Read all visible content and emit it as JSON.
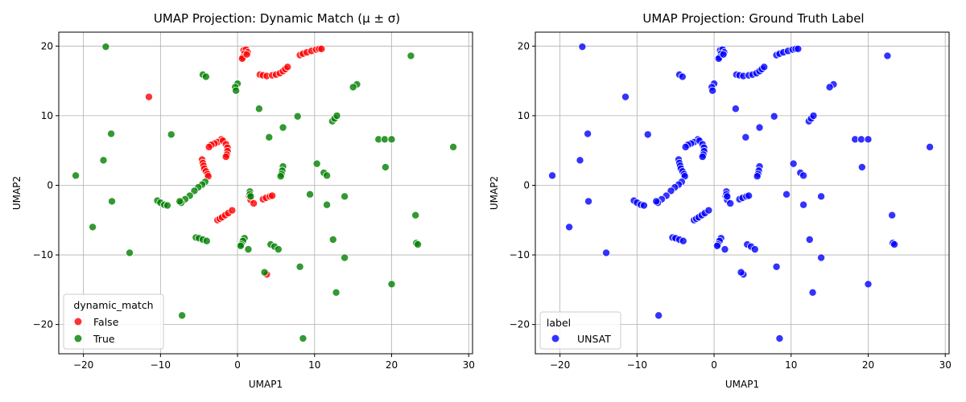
{
  "chart_data": [
    {
      "type": "scatter",
      "title": "UMAP Projection: Dynamic Match (μ ± σ)",
      "xlabel": "UMAP1",
      "ylabel": "UMAP2",
      "xlim": [
        -23.2,
        30.5
      ],
      "ylim": [
        -24.2,
        22.0
      ],
      "xticks": [
        "−20",
        "−10",
        "0",
        "10",
        "20",
        "30"
      ],
      "xtick_values": [
        -20,
        -10,
        0,
        10,
        20,
        30
      ],
      "yticks": [
        "−20",
        "−10",
        "0",
        "10",
        "20"
      ],
      "ytick_values": [
        -20,
        -10,
        0,
        10,
        20
      ],
      "grid": true,
      "legend": {
        "title": "dynamic_match",
        "placement": "lower-left"
      },
      "series": [
        {
          "name": "False",
          "color": "#ff0000",
          "points": [
            [
              -11.5,
              12.7
            ],
            [
              0.8,
              19.4
            ],
            [
              1.1,
              19.5
            ],
            [
              1.3,
              19.1
            ],
            [
              0.9,
              18.9
            ],
            [
              0.7,
              18.4
            ],
            [
              0.6,
              18.2
            ],
            [
              1.2,
              18.8
            ],
            [
              2.9,
              15.9
            ],
            [
              3.3,
              15.8
            ],
            [
              3.8,
              15.7
            ],
            [
              4.5,
              15.8
            ],
            [
              5.0,
              15.9
            ],
            [
              5.5,
              16.1
            ],
            [
              5.9,
              16.4
            ],
            [
              6.2,
              16.7
            ],
            [
              6.5,
              17.0
            ],
            [
              8.1,
              18.7
            ],
            [
              8.5,
              18.9
            ],
            [
              9.0,
              19.1
            ],
            [
              9.6,
              19.3
            ],
            [
              10.2,
              19.5
            ],
            [
              10.6,
              19.6
            ],
            [
              10.9,
              19.6
            ],
            [
              -2.1,
              6.6
            ],
            [
              -2.6,
              6.2
            ],
            [
              -3.0,
              6.0
            ],
            [
              -3.4,
              5.8
            ],
            [
              -3.7,
              5.5
            ],
            [
              -1.9,
              6.4
            ],
            [
              -1.5,
              5.9
            ],
            [
              -1.3,
              5.4
            ],
            [
              -1.3,
              4.9
            ],
            [
              -1.4,
              4.4
            ],
            [
              -1.5,
              4.1
            ],
            [
              -4.6,
              3.7
            ],
            [
              -4.5,
              3.2
            ],
            [
              -4.4,
              2.8
            ],
            [
              -4.3,
              2.4
            ],
            [
              -4.1,
              2.0
            ],
            [
              -3.9,
              1.6
            ],
            [
              -3.8,
              1.3
            ],
            [
              -2.6,
              -5.0
            ],
            [
              -2.3,
              -4.8
            ],
            [
              -2.0,
              -4.6
            ],
            [
              -1.6,
              -4.3
            ],
            [
              -1.2,
              -4.0
            ],
            [
              -0.7,
              -3.6
            ],
            [
              1.5,
              -1.5
            ],
            [
              1.7,
              -2.1
            ],
            [
              2.1,
              -2.6
            ],
            [
              3.3,
              -2.0
            ],
            [
              3.7,
              -1.8
            ],
            [
              4.2,
              -1.6
            ],
            [
              4.5,
              -1.5
            ],
            [
              3.8,
              -12.8
            ]
          ]
        },
        {
          "name": "True",
          "color": "#008000",
          "points": [
            [
              -17.1,
              19.9
            ],
            [
              22.5,
              18.6
            ],
            [
              -4.5,
              15.9
            ],
            [
              -4.1,
              15.6
            ],
            [
              0.0,
              14.6
            ],
            [
              -0.3,
              14.1
            ],
            [
              -0.2,
              13.6
            ],
            [
              15.5,
              14.5
            ],
            [
              15.0,
              14.1
            ],
            [
              2.8,
              11.0
            ],
            [
              -16.4,
              7.4
            ],
            [
              -8.6,
              7.3
            ],
            [
              5.9,
              8.3
            ],
            [
              12.3,
              9.2
            ],
            [
              12.6,
              9.6
            ],
            [
              12.9,
              10.0
            ],
            [
              7.8,
              9.9
            ],
            [
              4.1,
              6.9
            ],
            [
              18.3,
              6.6
            ],
            [
              19.1,
              6.6
            ],
            [
              20.0,
              6.6
            ],
            [
              28.0,
              5.5
            ],
            [
              -17.4,
              3.6
            ],
            [
              -21.0,
              1.4
            ],
            [
              10.3,
              3.1
            ],
            [
              19.2,
              2.6
            ],
            [
              5.9,
              2.7
            ],
            [
              5.8,
              2.1
            ],
            [
              5.7,
              1.6
            ],
            [
              5.6,
              1.3
            ],
            [
              11.2,
              1.8
            ],
            [
              11.6,
              1.4
            ],
            [
              -4.2,
              0.5
            ],
            [
              -4.6,
              0.1
            ],
            [
              -5.1,
              -0.3
            ],
            [
              -5.6,
              -0.8
            ],
            [
              -6.2,
              -1.5
            ],
            [
              -6.8,
              -2.0
            ],
            [
              -7.3,
              -2.5
            ],
            [
              -7.5,
              -2.3
            ],
            [
              -10.4,
              -2.2
            ],
            [
              -10.0,
              -2.5
            ],
            [
              -9.5,
              -2.8
            ],
            [
              -9.1,
              -2.9
            ],
            [
              -16.3,
              -2.3
            ],
            [
              1.6,
              -0.9
            ],
            [
              1.6,
              -1.3
            ],
            [
              1.7,
              -1.6
            ],
            [
              9.4,
              -1.3
            ],
            [
              11.6,
              -2.8
            ],
            [
              13.9,
              -1.6
            ],
            [
              23.1,
              -4.3
            ],
            [
              -18.8,
              -6.0
            ],
            [
              -5.4,
              -7.5
            ],
            [
              -5.0,
              -7.6
            ],
            [
              -4.5,
              -7.8
            ],
            [
              -4.0,
              -8.0
            ],
            [
              0.9,
              -7.6
            ],
            [
              0.7,
              -8.0
            ],
            [
              0.5,
              -8.5
            ],
            [
              0.4,
              -8.7
            ],
            [
              1.4,
              -9.2
            ],
            [
              4.3,
              -8.5
            ],
            [
              4.8,
              -8.8
            ],
            [
              5.3,
              -9.2
            ],
            [
              12.4,
              -7.8
            ],
            [
              13.9,
              -10.4
            ],
            [
              23.2,
              -8.3
            ],
            [
              23.4,
              -8.5
            ],
            [
              -14.0,
              -9.7
            ],
            [
              8.1,
              -11.7
            ],
            [
              3.5,
              -12.5
            ],
            [
              12.8,
              -15.4
            ],
            [
              20.0,
              -14.2
            ],
            [
              -7.2,
              -18.7
            ],
            [
              8.5,
              -22.0
            ]
          ]
        }
      ]
    },
    {
      "type": "scatter",
      "title": "UMAP Projection: Ground Truth Label",
      "xlabel": "UMAP1",
      "ylabel": "UMAP2",
      "xlim": [
        -23.2,
        30.5
      ],
      "ylim": [
        -24.2,
        22.0
      ],
      "xticks": [
        "−20",
        "−10",
        "0",
        "10",
        "20",
        "30"
      ],
      "xtick_values": [
        -20,
        -10,
        0,
        10,
        20,
        30
      ],
      "yticks": [
        "−20",
        "−10",
        "0",
        "10",
        "20"
      ],
      "ytick_values": [
        -20,
        -10,
        0,
        10,
        20
      ],
      "grid": true,
      "legend": {
        "title": "label",
        "placement": "lower-left"
      },
      "series": [
        {
          "name": "UNSAT",
          "color": "#0000ff",
          "points": "same-as-left"
        }
      ]
    }
  ]
}
